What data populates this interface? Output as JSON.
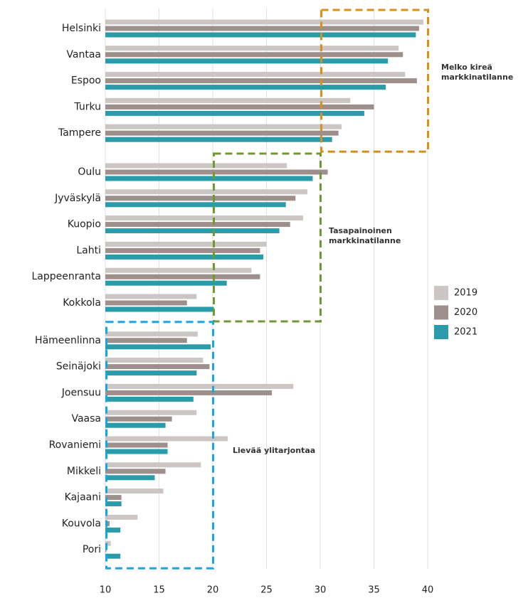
{
  "chart_data": {
    "type": "bar",
    "orientation": "horizontal",
    "categories": [
      "Helsinki",
      "Vantaa",
      "Espoo",
      "Turku",
      "Tampere",
      "Oulu",
      "Jyväskylä",
      "Kuopio",
      "Lahti",
      "Lappeenranta",
      "Kokkola",
      "Hämeenlinna",
      "Seinäjoki",
      "Joensuu",
      "Vaasa",
      "Rovaniemi",
      "Mikkeli",
      "Kajaani",
      "Kouvola",
      "Pori"
    ],
    "series": [
      {
        "name": "2019",
        "color": "#cbc5c3",
        "values": [
          39.6,
          37.3,
          37.9,
          32.8,
          32.0,
          26.9,
          28.8,
          28.4,
          25.0,
          23.6,
          18.5,
          18.6,
          19.1,
          27.5,
          18.5,
          21.4,
          18.9,
          15.4,
          13.0,
          10.5
        ]
      },
      {
        "name": "2020",
        "color": "#9d908c",
        "values": [
          39.2,
          37.7,
          39.0,
          35.0,
          31.7,
          30.7,
          27.7,
          27.2,
          24.4,
          24.4,
          17.6,
          17.6,
          19.7,
          25.5,
          16.2,
          15.8,
          15.6,
          11.5,
          10.4,
          10.1
        ]
      },
      {
        "name": "2021",
        "color": "#2a9ba8",
        "values": [
          38.9,
          36.3,
          36.1,
          34.1,
          31.1,
          29.3,
          26.8,
          26.2,
          24.7,
          21.3,
          20.1,
          19.8,
          18.5,
          18.2,
          15.6,
          15.8,
          14.6,
          11.5,
          11.4,
          11.4
        ]
      }
    ],
    "xlim": [
      10,
      40
    ],
    "xticks": [
      10,
      15,
      20,
      25,
      30,
      35,
      40
    ],
    "grid": true,
    "legend": "right",
    "annotations": [
      {
        "lines": [
          "Melko kireä",
          "markkinatilanne"
        ],
        "x_range": [
          30,
          40
        ],
        "color": "#d9901a"
      },
      {
        "lines": [
          "Tasapainoinen",
          "markkinatilanne"
        ],
        "x_range": [
          20,
          30
        ],
        "color": "#6e9a32"
      },
      {
        "lines": [
          "Lievää ylitarjontaa"
        ],
        "x_range": [
          10,
          20
        ],
        "color": "#1aa5e0"
      }
    ]
  }
}
